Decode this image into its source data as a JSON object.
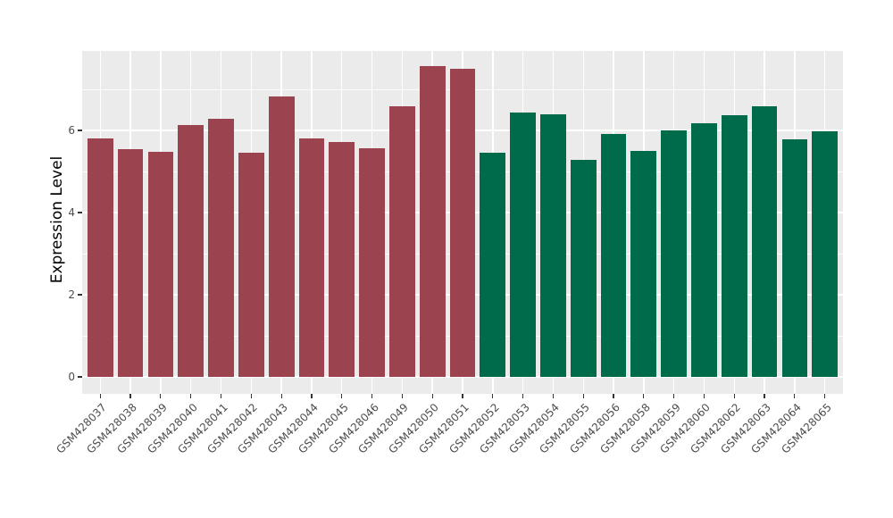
{
  "figure": {
    "background": "#FFFFFF",
    "panel_background": "#EBEBEB",
    "grid_color": "#FFFFFF",
    "axis_text_color": "#4D4D4D",
    "tick_mark_color": "#333333"
  },
  "chart_data": {
    "type": "bar",
    "title": "",
    "xlabel": "",
    "ylabel": "Expression Level",
    "legend_position": "none",
    "grid": true,
    "y_ticks": [
      0,
      2,
      4,
      6
    ],
    "y_minor_ticks": [
      1,
      3,
      5,
      7
    ],
    "ylim": [
      -0.41,
      7.93
    ],
    "bar_width_fraction": 0.85,
    "groups": {
      "maroon": {
        "color": "#9B4450"
      },
      "green": {
        "color": "#006B4A"
      }
    },
    "bars": [
      {
        "label": "GSM428037",
        "value": 5.8,
        "group": "maroon"
      },
      {
        "label": "GSM428038",
        "value": 5.55,
        "group": "maroon"
      },
      {
        "label": "GSM428039",
        "value": 5.48,
        "group": "maroon"
      },
      {
        "label": "GSM428040",
        "value": 6.13,
        "group": "maroon"
      },
      {
        "label": "GSM428041",
        "value": 6.29,
        "group": "maroon"
      },
      {
        "label": "GSM428042",
        "value": 5.46,
        "group": "maroon"
      },
      {
        "label": "GSM428043",
        "value": 6.83,
        "group": "maroon"
      },
      {
        "label": "GSM428044",
        "value": 5.8,
        "group": "maroon"
      },
      {
        "label": "GSM428045",
        "value": 5.71,
        "group": "maroon"
      },
      {
        "label": "GSM428046",
        "value": 5.57,
        "group": "maroon"
      },
      {
        "label": "GSM428049",
        "value": 6.58,
        "group": "maroon"
      },
      {
        "label": "GSM428050",
        "value": 7.57,
        "group": "maroon"
      },
      {
        "label": "GSM428051",
        "value": 7.49,
        "group": "maroon"
      },
      {
        "label": "GSM428052",
        "value": 5.45,
        "group": "green"
      },
      {
        "label": "GSM428053",
        "value": 6.43,
        "group": "green"
      },
      {
        "label": "GSM428054",
        "value": 6.39,
        "group": "green"
      },
      {
        "label": "GSM428055",
        "value": 5.28,
        "group": "green"
      },
      {
        "label": "GSM428056",
        "value": 5.91,
        "group": "green"
      },
      {
        "label": "GSM428058",
        "value": 5.5,
        "group": "green"
      },
      {
        "label": "GSM428059",
        "value": 5.99,
        "group": "green"
      },
      {
        "label": "GSM428060",
        "value": 6.17,
        "group": "green"
      },
      {
        "label": "GSM428062",
        "value": 6.38,
        "group": "green"
      },
      {
        "label": "GSM428063",
        "value": 6.58,
        "group": "green"
      },
      {
        "label": "GSM428064",
        "value": 5.79,
        "group": "green"
      },
      {
        "label": "GSM428065",
        "value": 5.98,
        "group": "green"
      }
    ]
  }
}
